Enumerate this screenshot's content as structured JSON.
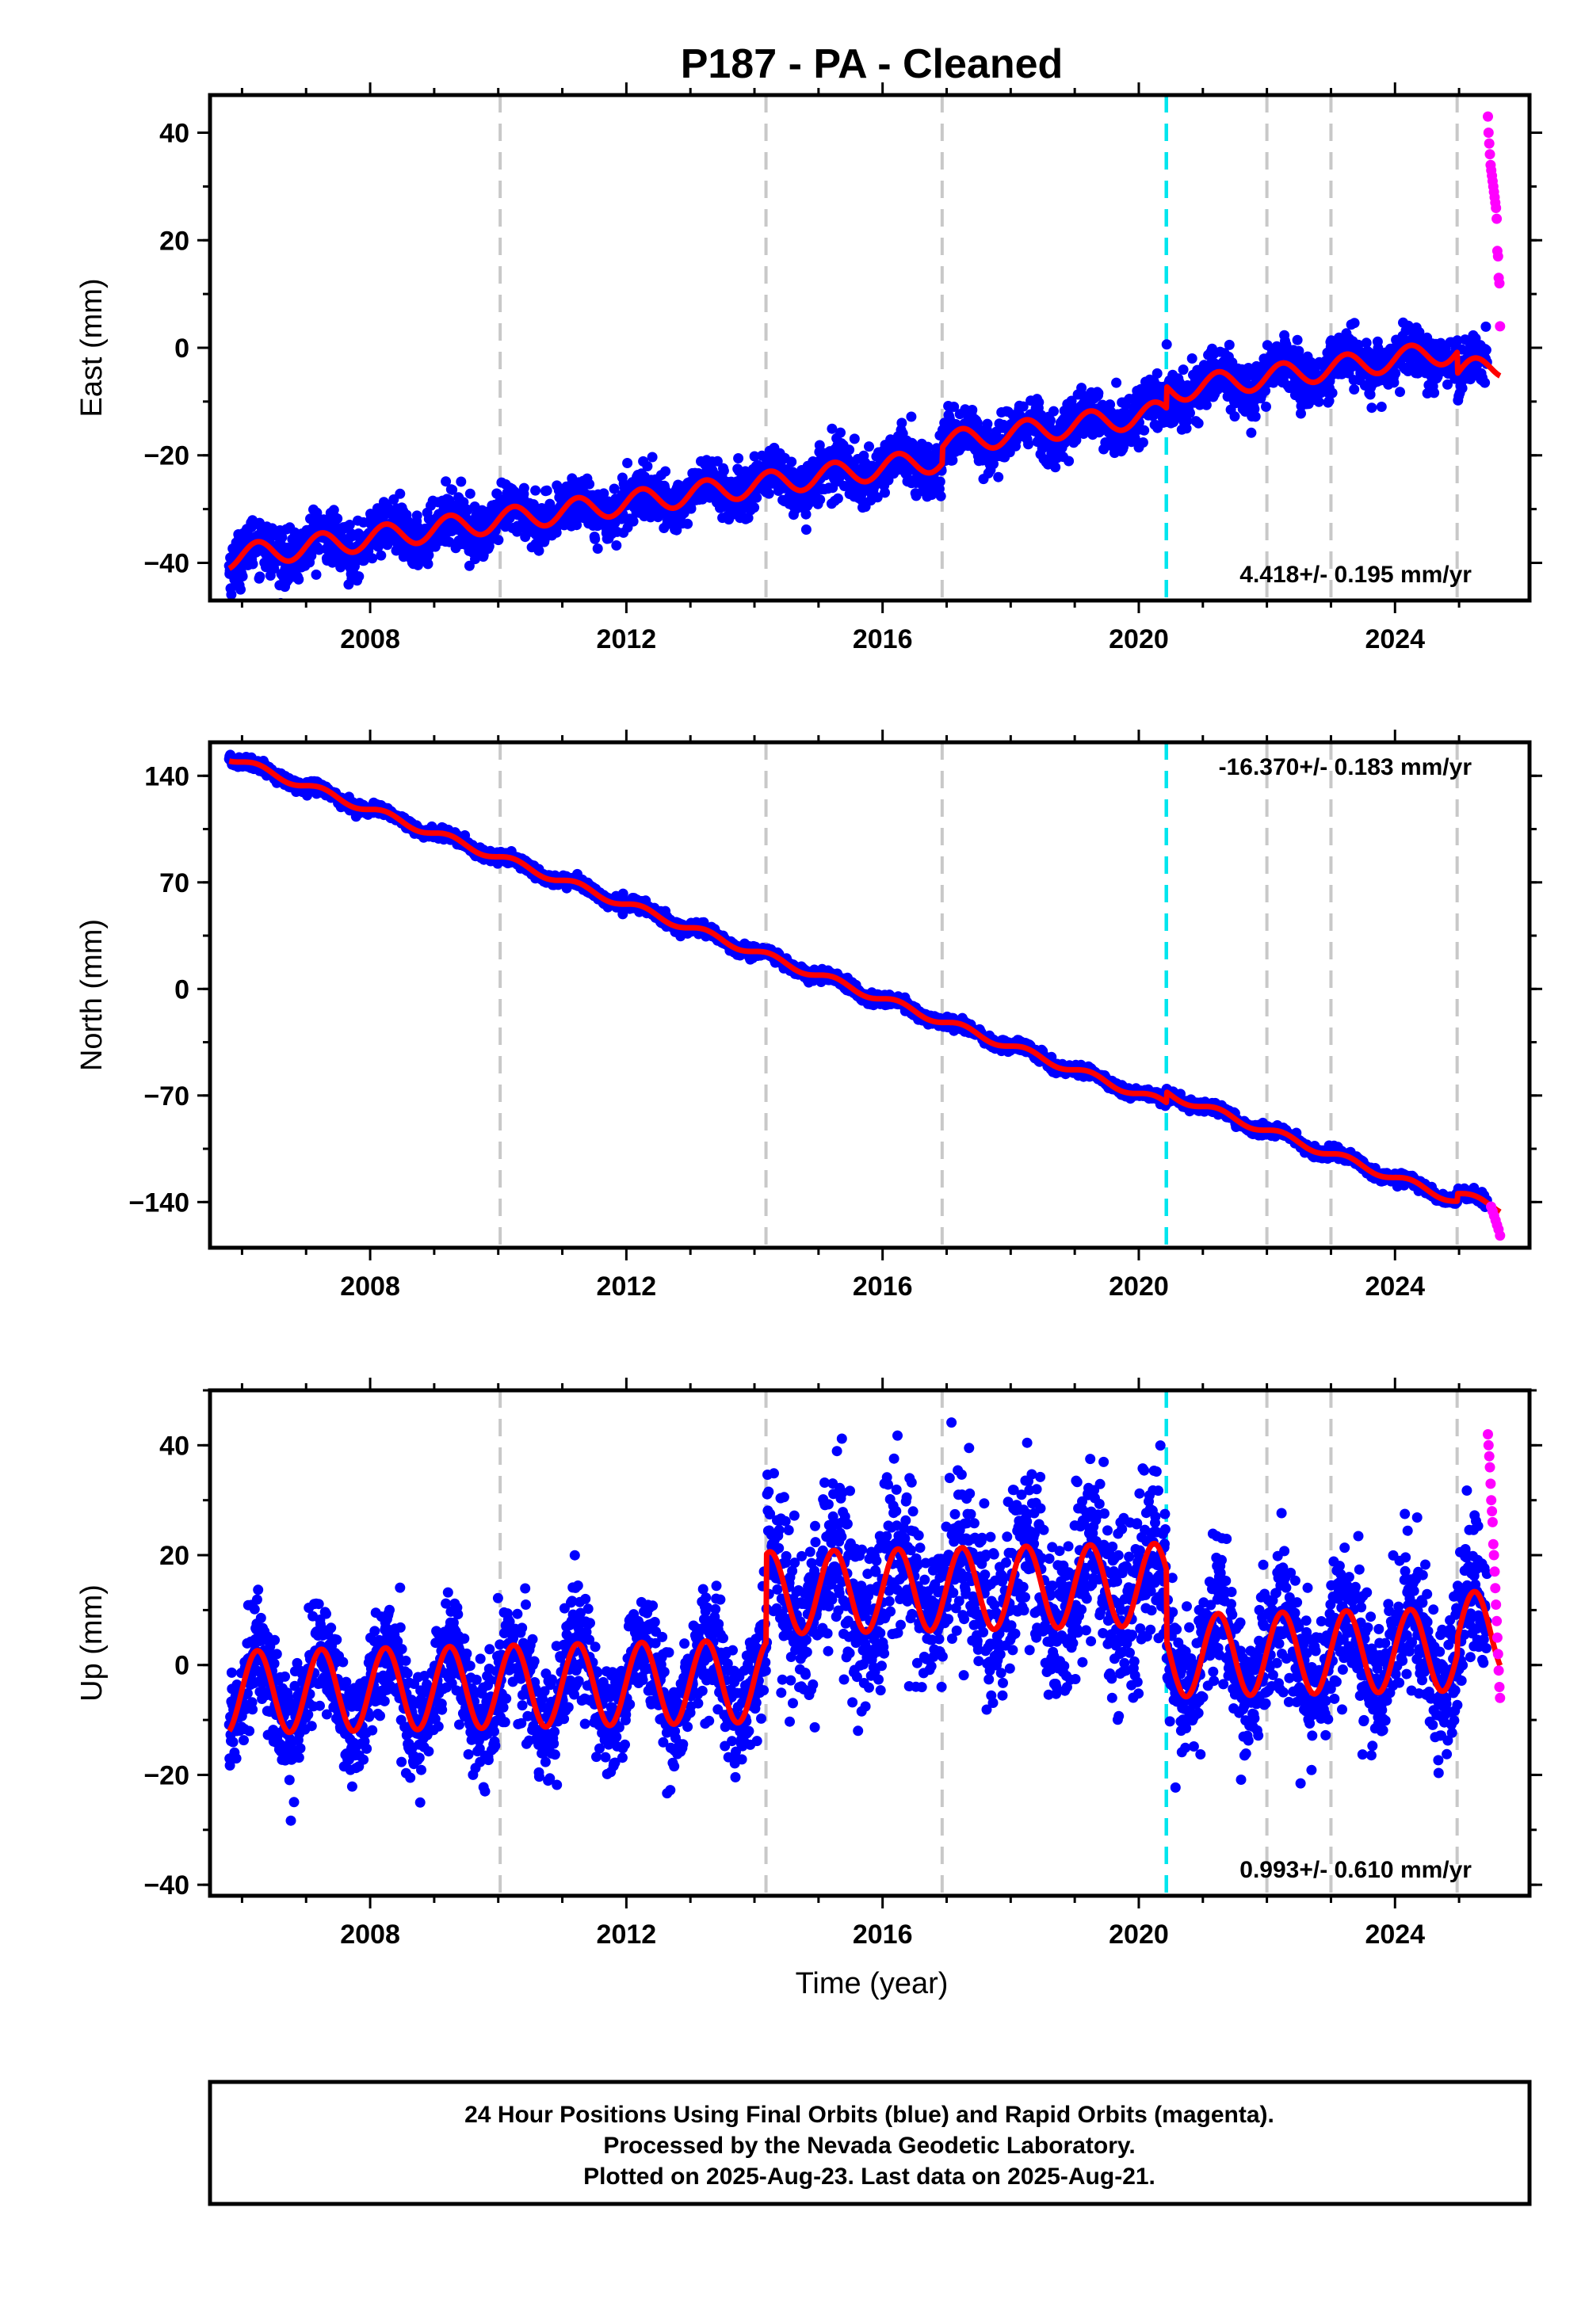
{
  "title": "P187  - PA - Cleaned",
  "xlabel": "Time (year)",
  "footer": [
    "24 Hour Positions Using Final Orbits (blue) and Rapid Orbits (magenta).",
    "Processed by the Nevada Geodetic Laboratory.",
    "Plotted on 2025-Aug-23. Last data on 2025-Aug-21."
  ],
  "colors": {
    "final_orbits": "#0000ff",
    "rapid_orbits": "#ff00ff",
    "model": "#ff0000",
    "event_lines": "#c8c8c8",
    "equipment_change": "#00e5ee"
  },
  "chart_data": [
    {
      "type": "scatter",
      "ylabel": "East (mm)",
      "xlim": [
        2005.5,
        2026.1
      ],
      "ylim": [
        -47,
        47
      ],
      "x_ticks": [
        2008,
        2012,
        2016,
        2020,
        2024
      ],
      "y_ticks": [
        -40,
        -20,
        0,
        20,
        40
      ],
      "y_tick_labels": [
        "−40",
        "−20",
        "0",
        "20",
        "40"
      ],
      "rate": "4.418+/- 0.195 mm/yr",
      "rate_position": "bottom-right",
      "grid": false,
      "event_lines": [
        2010.03,
        2014.18,
        2016.93,
        2022.0,
        2023.0,
        2024.97
      ],
      "equipment_change_line": 2020.43,
      "model": {
        "start_year": 2005.8,
        "start_value": -39,
        "rate": 1.64,
        "seasonal_amplitude": 2.2,
        "offsets": [
          [
            2016.93,
            3
          ],
          [
            2020.43,
            4
          ],
          [
            2024.97,
            -4
          ]
        ]
      },
      "noise": 2.4,
      "rapid_orbits": {
        "x_start": 2025.45,
        "x_end": 2025.64,
        "values": [
          43,
          40,
          38,
          36,
          34,
          33,
          32,
          31,
          30,
          29,
          28,
          27,
          26,
          24,
          18,
          17,
          13,
          12,
          4
        ]
      }
    },
    {
      "type": "scatter",
      "ylabel": "North (mm)",
      "xlim": [
        2005.5,
        2026.1
      ],
      "ylim": [
        -170,
        162
      ],
      "x_ticks": [
        2008,
        2012,
        2016,
        2020,
        2024
      ],
      "y_ticks": [
        -140,
        -70,
        0,
        70,
        140
      ],
      "y_tick_labels": [
        "−140",
        "−70",
        "0",
        "70",
        "140"
      ],
      "rate": "-16.370+/- 0.183 mm/yr",
      "rate_position": "top-right",
      "grid": false,
      "event_lines": [
        2010.03,
        2014.18,
        2016.93,
        2022.0,
        2023.0,
        2024.97
      ],
      "equipment_change_line": 2020.43,
      "model": {
        "start_year": 2005.8,
        "start_value": 152,
        "rate": -15.55,
        "seasonal_amplitude": 2.5,
        "offsets": [
          [
            2020.43,
            7
          ],
          [
            2024.97,
            5
          ]
        ]
      },
      "noise": 1.8,
      "rapid_orbits": {
        "x_start": 2025.5,
        "x_end": 2025.64,
        "values": [
          -143,
          -146,
          -149,
          -152,
          -155,
          -158,
          -162
        ]
      }
    },
    {
      "type": "scatter",
      "ylabel": "Up (mm)",
      "xlim": [
        2005.5,
        2026.1
      ],
      "ylim": [
        -42,
        50
      ],
      "x_ticks": [
        2008,
        2012,
        2016,
        2020,
        2024
      ],
      "y_ticks": [
        -40,
        -20,
        0,
        20,
        40
      ],
      "y_tick_labels": [
        "−40",
        "−20",
        "0",
        "20",
        "40"
      ],
      "rate": "0.993+/- 0.610 mm/yr",
      "rate_position": "bottom-right",
      "grid": false,
      "event_lines": [
        2010.03,
        2014.18,
        2016.93,
        2022.0,
        2023.0,
        2024.97
      ],
      "equipment_change_line": 2020.43,
      "model": {
        "start_year": 2005.8,
        "start_value": -5,
        "rate": 0.25,
        "seasonal_amplitude": 7.5,
        "offsets": [
          [
            2014.18,
            16
          ],
          [
            2020.43,
            -13
          ],
          [
            2024.97,
            3
          ]
        ]
      },
      "noise": 5,
      "rapid_orbits": {
        "x_start": 2025.45,
        "x_end": 2025.64,
        "values": [
          42,
          40,
          38,
          36,
          33,
          30,
          28,
          26,
          22,
          20,
          17,
          14,
          11,
          8,
          5,
          2,
          -1,
          -4,
          -6
        ]
      }
    }
  ]
}
